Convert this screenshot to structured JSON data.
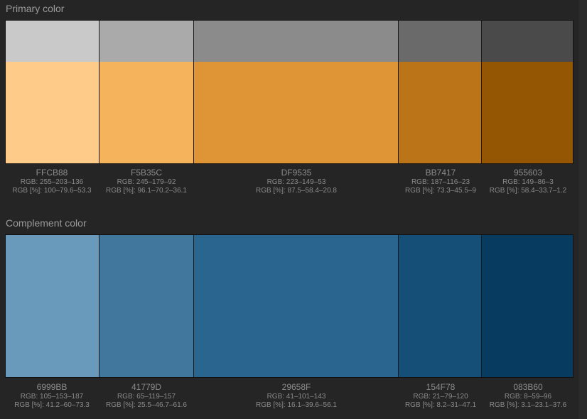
{
  "primary": {
    "title": "Primary color",
    "swatches": [
      {
        "hex": "FFCB88",
        "rgb": "RGB: 255–203–136",
        "pct": "RGB [%]: 100–79.6–53.3",
        "color": "#FFCB88",
        "gray": "#C9C9C9"
      },
      {
        "hex": "F5B35C",
        "rgb": "RGB: 245–179–92",
        "pct": "RGB [%]: 96.1–70.2–36.1",
        "color": "#F5B35C",
        "gray": "#AAAAAA"
      },
      {
        "hex": "DF9535",
        "rgb": "RGB: 223–149–53",
        "pct": "RGB [%]: 87.5–58.4–20.8",
        "color": "#DF9535",
        "gray": "#8B8B8B"
      },
      {
        "hex": "BB7417",
        "rgb": "RGB: 187–116–23",
        "pct": "RGB [%]: 73.3–45.5–9",
        "color": "#BB7417",
        "gray": "#6A6A6A"
      },
      {
        "hex": "955603",
        "rgb": "RGB: 149–86–3",
        "pct": "RGB [%]: 58.4–33.7–1.2",
        "color": "#955603",
        "gray": "#4A4A4A"
      }
    ]
  },
  "complement": {
    "title": "Complement color",
    "swatches": [
      {
        "hex": "6999BB",
        "rgb": "RGB: 105–153–187",
        "pct": "RGB [%]: 41.2–60–73.3",
        "color": "#6999BB"
      },
      {
        "hex": "41779D",
        "rgb": "RGB: 65–119–157",
        "pct": "RGB [%]: 25.5–46.7–61.6",
        "color": "#41779D"
      },
      {
        "hex": "29658F",
        "rgb": "RGB: 41–101–143",
        "pct": "RGB [%]: 16.1–39.6–56.1",
        "color": "#29658F"
      },
      {
        "hex": "154F78",
        "rgb": "RGB: 21–79–120",
        "pct": "RGB [%]: 8.2–31–47.1",
        "color": "#154F78"
      },
      {
        "hex": "083B60",
        "rgb": "RGB: 8–59–96",
        "pct": "RGB [%]: 3.1–23.1–37.6",
        "color": "#083B60"
      }
    ]
  }
}
